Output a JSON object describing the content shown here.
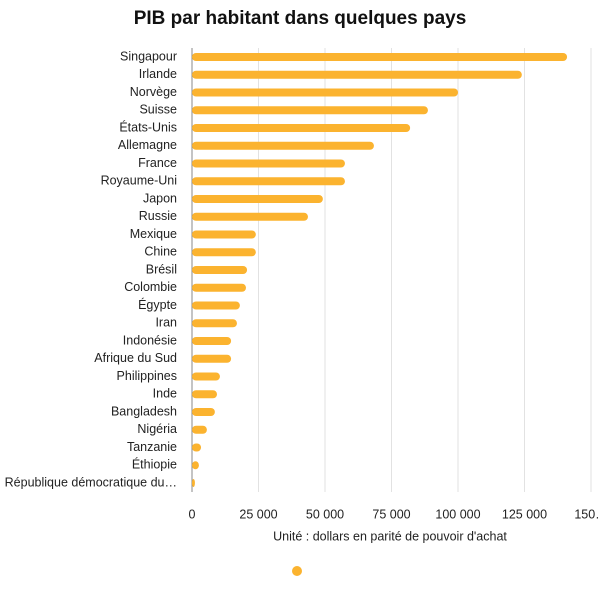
{
  "chart_data": {
    "type": "hbar",
    "title": "PIB par habitant dans quelques pays",
    "x_label": "Unité : dollars en parité de pouvoir d'achat",
    "categories": [
      "Singapour",
      "Irlande",
      "Norvège",
      "Suisse",
      "États-Unis",
      "Allemagne",
      "France",
      "Royaume-Uni",
      "Japon",
      "Russie",
      "Mexique",
      "Chine",
      "Brésil",
      "Colombie",
      "Égypte",
      "Iran",
      "Indonésie",
      "Afrique du Sud",
      "Philippines",
      "Inde",
      "Bangladesh",
      "Nigéria",
      "Tanzanie",
      "Éthiopie",
      "République démocratique du…"
    ],
    "values": [
      141000,
      124000,
      100000,
      88700,
      82000,
      68400,
      57500,
      57500,
      49200,
      43600,
      24000,
      24000,
      20700,
      20300,
      18000,
      16900,
      14700,
      14700,
      10500,
      9400,
      8600,
      5600,
      3400,
      2600,
      1100
    ],
    "color": "#fbb32f",
    "xlim": [
      0,
      150000
    ],
    "xticks": [
      0,
      {
        "value": 25000,
        "label": "25 000"
      },
      {
        "value": 50000,
        "label": "50 000"
      },
      {
        "value": 75000,
        "label": "75 000"
      },
      {
        "value": 100000,
        "label": "100 000"
      },
      {
        "value": 125000,
        "label": "125 000"
      },
      {
        "value": 150000,
        "label": "150…"
      }
    ],
    "grid": true
  }
}
